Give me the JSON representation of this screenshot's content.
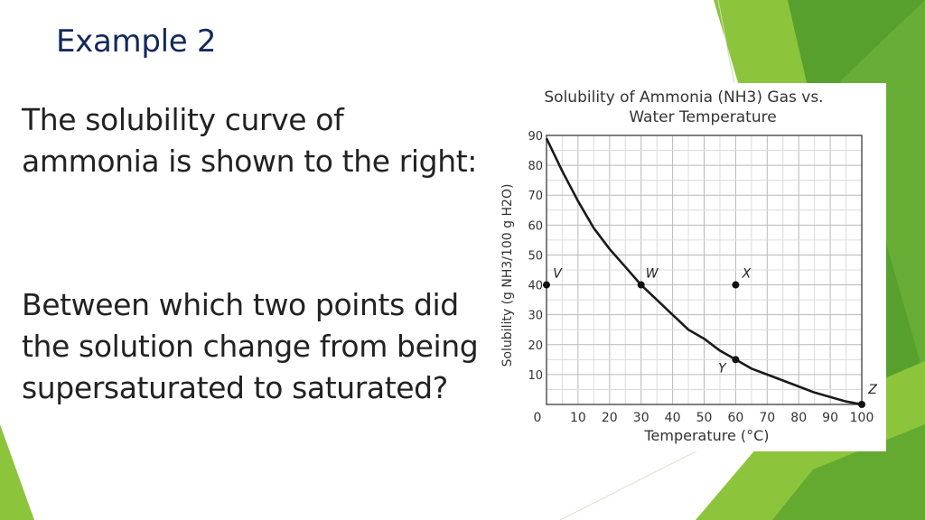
{
  "slide": {
    "title": "Example 2",
    "paragraph_1": "The solubility curve of ammonia is shown to the right:",
    "paragraph_2": "Between which two points did the solution change from being supersaturated to saturated?"
  },
  "colors": {
    "title": "#12295a",
    "text": "#222222",
    "accent_green": "#8cc43c",
    "dark_green": "#4e9a2a"
  },
  "chart_data": {
    "type": "line",
    "title_line1": "Solubility of Ammonia (NH3) Gas vs.",
    "title_line2": "Water Temperature",
    "xlabel": "Temperature (°C)",
    "ylabel": "Solubility (g NH3/100 g H2O)",
    "xlim": [
      0,
      100
    ],
    "ylim": [
      0,
      90
    ],
    "xticks": [
      0,
      10,
      20,
      30,
      40,
      50,
      60,
      70,
      80,
      90,
      100
    ],
    "yticks": [
      10,
      20,
      30,
      40,
      50,
      60,
      70,
      80,
      90
    ],
    "grid": true,
    "series": [
      {
        "x": [
          0,
          5,
          10,
          15,
          20,
          25,
          30,
          35,
          40,
          45,
          50,
          55,
          60,
          65,
          70,
          75,
          80,
          85,
          90,
          95,
          100
        ],
        "values": [
          89,
          78,
          68,
          59,
          52,
          46,
          40,
          35,
          30,
          25,
          22,
          18,
          15,
          12,
          10,
          8,
          6,
          4,
          2.5,
          1,
          0
        ]
      }
    ],
    "points": [
      {
        "label": "V",
        "x": 0,
        "y": 40
      },
      {
        "label": "W",
        "x": 30,
        "y": 40
      },
      {
        "label": "X",
        "x": 60,
        "y": 40
      },
      {
        "label": "Y",
        "x": 60,
        "y": 15
      },
      {
        "label": "Z",
        "x": 100,
        "y": 0
      }
    ]
  }
}
